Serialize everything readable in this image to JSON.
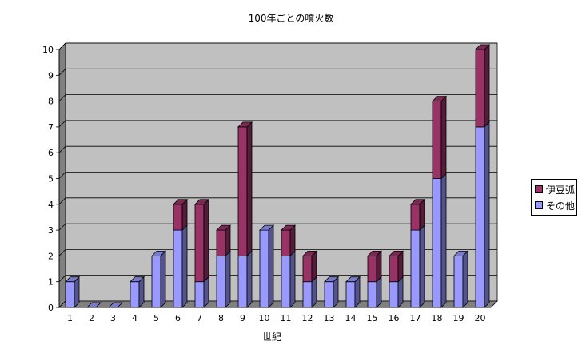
{
  "chart_data": {
    "type": "bar",
    "stacked": true,
    "three_d": true,
    "title": "100年ごとの噴火数",
    "xlabel": "世紀",
    "ylabel": "",
    "ylim": [
      0,
      10
    ],
    "yticks": [
      0,
      1,
      2,
      3,
      4,
      5,
      6,
      7,
      8,
      9,
      10
    ],
    "grid": true,
    "legend_position": "right",
    "categories": [
      "1",
      "2",
      "3",
      "4",
      "5",
      "6",
      "7",
      "8",
      "9",
      "10",
      "11",
      "12",
      "13",
      "14",
      "15",
      "16",
      "17",
      "18",
      "19",
      "20"
    ],
    "series": [
      {
        "name": "その他",
        "color": "#9999ff",
        "values": [
          1,
          0,
          0,
          1,
          2,
          3,
          1,
          2,
          2,
          3,
          2,
          1,
          1,
          1,
          1,
          1,
          3,
          5,
          2,
          7
        ]
      },
      {
        "name": "伊豆弧",
        "color": "#993366",
        "values": [
          0,
          0,
          0,
          0,
          0,
          1,
          3,
          1,
          5,
          0,
          1,
          1,
          0,
          0,
          1,
          1,
          1,
          3,
          0,
          3
        ]
      }
    ],
    "colors": {
      "plot_background": "#c0c0c0",
      "gridline": "#000000",
      "floor": "#808080"
    }
  }
}
